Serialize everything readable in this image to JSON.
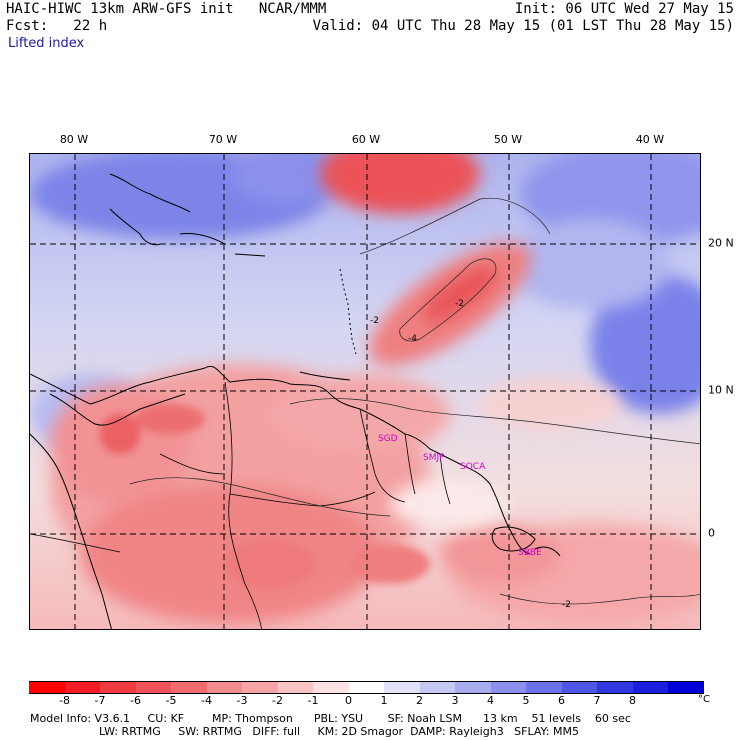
{
  "header": {
    "model_line": "HAIC-HIWC 13km ARW-GFS init   NCAR/MMM",
    "forecast_line": "Fcst:   22 h",
    "init_line": "Init: 06 UTC Wed 27 May 15",
    "valid_line": "Valid: 04 UTC Thu 28 May 15 (01 LST Thu 28 May 15)",
    "field_name": "Lifted index"
  },
  "map": {
    "lon_labels": [
      "80 W",
      "70 W",
      "60 W",
      "50 W",
      "40 W"
    ],
    "lat_labels": [
      "20 N",
      "10 N",
      "0"
    ],
    "station_labels": [
      "SGD",
      "SMJP",
      "SOCA",
      "SBBE"
    ],
    "contour_labels": [
      "-2",
      "-4",
      "-2",
      "-2"
    ],
    "colors": {
      "ocean_north": "#c7caf0",
      "ocean_deep": "#6d78e8",
      "land_unstable": "#f6a3a3",
      "strong_unstable": "#e8464c"
    }
  },
  "colorbar": {
    "unit": "°C",
    "tick_labels": [
      "-8",
      "-7",
      "-6",
      "-5",
      "-4",
      "-3",
      "-2",
      "-1",
      "0",
      "1",
      "2",
      "3",
      "4",
      "5",
      "6",
      "7",
      "8"
    ],
    "colors": [
      "#ff0000",
      "#f21c24",
      "#ef3a3f",
      "#f05259",
      "#f26c6f",
      "#f38a8c",
      "#f5a5a6",
      "#f8c4c4",
      "#fce2e2",
      "#ffffff",
      "#e0e2f8",
      "#c5c8f2",
      "#a8adf0",
      "#8a90ec",
      "#6c73e8",
      "#4e56e4",
      "#3038e0",
      "#1a20dc",
      "#0000d8"
    ]
  },
  "footer": {
    "line1": "Model Info: V3.6.1     CU: KF        MP: Thompson      PBL: YSU       SF: Noah LSM      13 km    51 levels    60 sec",
    "line2": "LW: RRTMG     SW: RRTMG   DIFF: full     KM: 2D Smagor  DAMP: Rayleigh3   SFLAY: MM5"
  }
}
